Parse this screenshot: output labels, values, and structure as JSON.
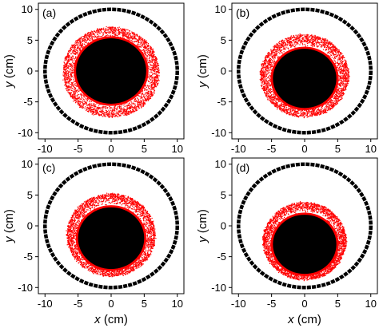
{
  "colors": {
    "particles": "#ff0000",
    "core": "#000000",
    "wall": "#000000",
    "background": "#ffffff"
  },
  "chart_data": [
    {
      "type": "scatter",
      "panel_label": "(a)",
      "xlabel": "",
      "ylabel": "y (cm)",
      "xlim": [
        -11,
        11
      ],
      "ylim": [
        -11,
        11
      ],
      "xticks": [
        -10,
        -5,
        0,
        5,
        10
      ],
      "yticks": [
        -10,
        -5,
        0,
        5,
        10
      ],
      "wall_circle": {
        "cx": 0,
        "cy": 0,
        "r": 10
      },
      "core_circle": {
        "cx": 0,
        "cy": 0,
        "r": 5.3
      },
      "particle_ring": {
        "cx": 0,
        "cy": -0.2,
        "r_inner": 5.2,
        "r_outer": 7.3
      }
    },
    {
      "type": "scatter",
      "panel_label": "(b)",
      "xlabel": "",
      "ylabel": "y (cm)",
      "xlim": [
        -11,
        11
      ],
      "ylim": [
        -11,
        11
      ],
      "xticks": [
        -10,
        -5,
        0,
        5,
        10
      ],
      "yticks": [
        -10,
        -5,
        0,
        5,
        10
      ],
      "wall_circle": {
        "cx": 0,
        "cy": 0,
        "r": 10
      },
      "core_circle": {
        "cx": 0,
        "cy": -1.2,
        "r": 4.8
      },
      "particle_ring": {
        "cx": 0,
        "cy": -0.8,
        "r_inner": 4.7,
        "r_outer": 6.7
      }
    },
    {
      "type": "scatter",
      "panel_label": "(c)",
      "xlabel": "x (cm)",
      "ylabel": "y (cm)",
      "xlim": [
        -11,
        11
      ],
      "ylim": [
        -11,
        11
      ],
      "xticks": [
        -10,
        -5,
        0,
        5,
        10
      ],
      "yticks": [
        -10,
        -5,
        0,
        5,
        10
      ],
      "wall_circle": {
        "cx": 0,
        "cy": 0,
        "r": 10
      },
      "core_circle": {
        "cx": 0,
        "cy": -2.0,
        "r": 5.0
      },
      "particle_ring": {
        "cx": 0,
        "cy": -1.5,
        "r_inner": 4.9,
        "r_outer": 6.7
      }
    },
    {
      "type": "scatter",
      "panel_label": "(d)",
      "xlabel": "x (cm)",
      "ylabel": "y (cm)",
      "xlim": [
        -11,
        11
      ],
      "ylim": [
        -11,
        11
      ],
      "xticks": [
        -10,
        -5,
        0,
        5,
        10
      ],
      "yticks": [
        -10,
        -5,
        0,
        5,
        10
      ],
      "wall_circle": {
        "cx": 0,
        "cy": 0,
        "r": 10
      },
      "core_circle": {
        "cx": 0,
        "cy": -3.0,
        "r": 4.8
      },
      "particle_ring": {
        "cx": 0,
        "cy": -2.5,
        "r_inner": 4.7,
        "r_outer": 6.3
      }
    }
  ]
}
